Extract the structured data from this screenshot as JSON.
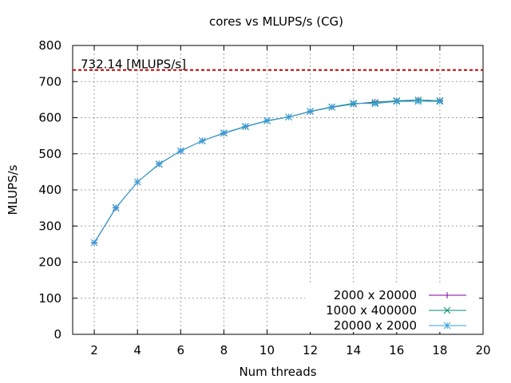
{
  "chart_data": {
    "type": "line",
    "title": "cores vs MLUPS/s (CG)",
    "xlabel": "Num threads",
    "ylabel": "MLUPS/s",
    "xlim": [
      1,
      20
    ],
    "ylim": [
      0,
      800
    ],
    "xticks": [
      2,
      4,
      6,
      8,
      10,
      12,
      14,
      16,
      18,
      20
    ],
    "yticks": [
      0,
      100,
      200,
      300,
      400,
      500,
      600,
      700,
      800
    ],
    "grid": true,
    "legend_position": "bottom-right",
    "reference_line": {
      "y": 732.14,
      "label": "732.14 [MLUPS/s]",
      "color": "#cc0000"
    },
    "x": [
      2,
      3,
      4,
      5,
      6,
      7,
      8,
      9,
      10,
      11,
      12,
      13,
      14,
      15,
      16,
      17,
      18
    ],
    "series": [
      {
        "name": "2000 x 20000",
        "color": "#7b00a0",
        "marker": "plus",
        "values": [
          253,
          350,
          422,
          472,
          508,
          536,
          557,
          575,
          592,
          602,
          617,
          629,
          638,
          643,
          646,
          649,
          647
        ]
      },
      {
        "name": "1000 x 400000",
        "color": "#008a70",
        "marker": "cross",
        "values": [
          254,
          350,
          422,
          471,
          508,
          536,
          557,
          575,
          591,
          602,
          617,
          629,
          638,
          642,
          647,
          649,
          647
        ]
      },
      {
        "name": "20000 x 2000",
        "color": "#3a9fd8",
        "marker": "star",
        "values": [
          254,
          351,
          422,
          472,
          508,
          536,
          558,
          576,
          592,
          602,
          618,
          630,
          640,
          639,
          645,
          645,
          645
        ]
      }
    ]
  }
}
